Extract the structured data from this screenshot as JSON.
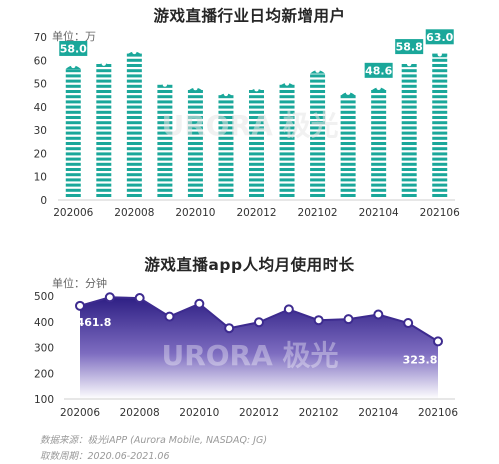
{
  "chart_data": [
    {
      "type": "bar",
      "title": "游戏直播行业日均新增用户",
      "unit_label": "单位：万",
      "ylim": [
        0,
        70
      ],
      "yticks": [
        0,
        10,
        20,
        30,
        40,
        50,
        60,
        70
      ],
      "categories": [
        "202006",
        "202007",
        "202008",
        "202009",
        "202010",
        "202011",
        "202012",
        "202101",
        "202102",
        "202103",
        "202104",
        "202105",
        "202106"
      ],
      "xtick_labels": [
        "202006",
        "202008",
        "202010",
        "202012",
        "202102",
        "202104",
        "202106"
      ],
      "values": [
        58.0,
        59.0,
        64.0,
        50.0,
        48.5,
        46.0,
        48.0,
        50.5,
        56.0,
        46.5,
        48.6,
        58.8,
        63.0
      ],
      "data_labels": [
        {
          "category": "202006",
          "text": "58.0"
        },
        {
          "category": "202104",
          "text": "48.6"
        },
        {
          "category": "202105",
          "text": "58.8"
        },
        {
          "category": "202106",
          "text": "63.0"
        }
      ],
      "color": "#1aa79a"
    },
    {
      "type": "area",
      "title": "游戏直播app人均月使用时长",
      "unit_label": "单位：分钟",
      "ylim": [
        100,
        500
      ],
      "yticks": [
        100,
        200,
        300,
        400,
        500
      ],
      "x": [
        "202006",
        "202007",
        "202008",
        "202009",
        "202010",
        "202011",
        "202012",
        "202101",
        "202102",
        "202103",
        "202104",
        "202105",
        "202106"
      ],
      "xtick_labels": [
        "202006",
        "202008",
        "202010",
        "202012",
        "202102",
        "202104",
        "202106"
      ],
      "values": [
        461.8,
        495,
        492,
        420,
        470,
        375,
        398,
        448,
        406,
        410,
        428,
        395,
        323.8
      ],
      "data_labels": [
        {
          "x": "202006",
          "text": "461.8"
        },
        {
          "x": "202106",
          "text": "323.8"
        }
      ],
      "color": "#3d2b8f"
    }
  ],
  "watermark": "URORA 极光",
  "footer": {
    "source": "数据来源：极光iAPP (Aurora Mobile, NASDAQ: JG)",
    "period": "取数周期：2020.06-2021.06"
  }
}
